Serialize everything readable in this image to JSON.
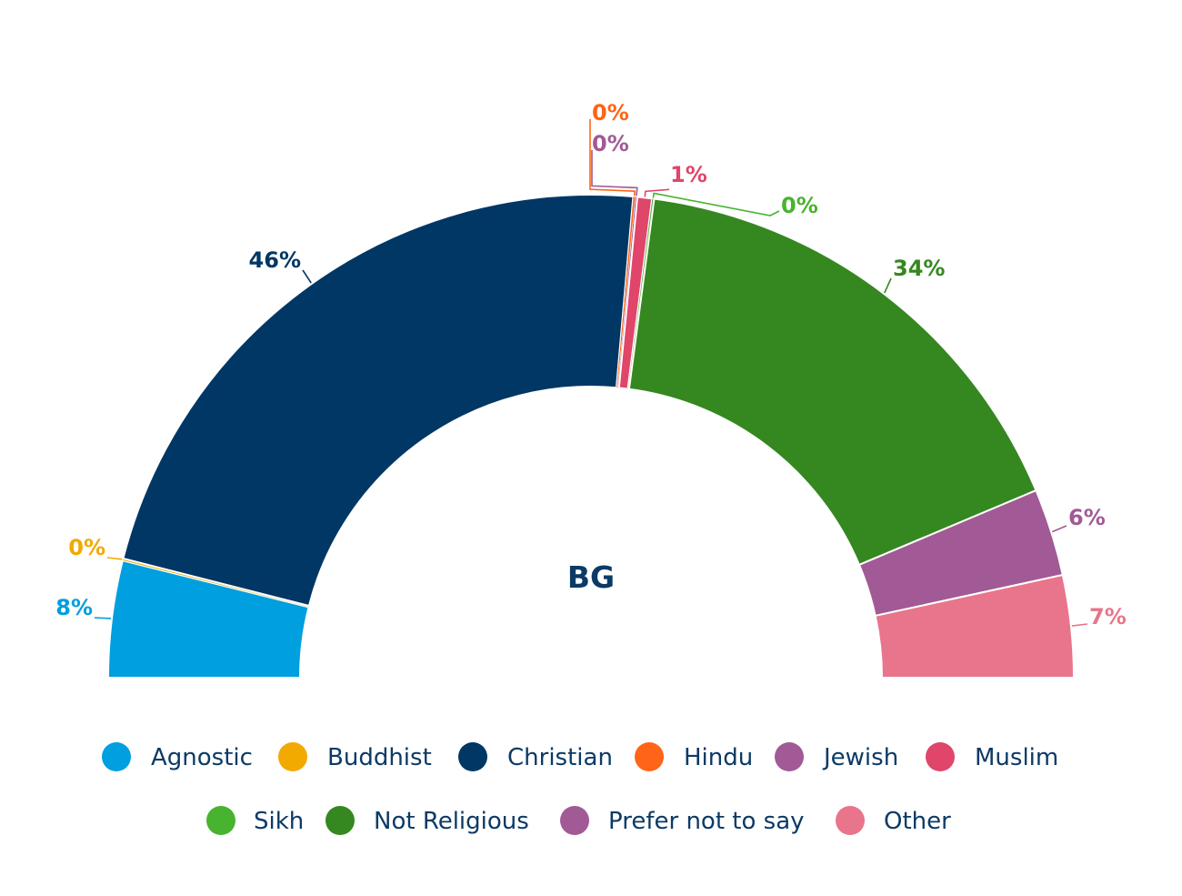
{
  "chart_data": {
    "type": "pie",
    "subtype": "semi-donut",
    "title": "BG",
    "legend_placement": "bottom",
    "slices": [
      {
        "name": "Agnostic",
        "value": 8,
        "label": "8%",
        "color": "#009fdf"
      },
      {
        "name": "Buddhist",
        "value": 0,
        "label": "0%",
        "color": "#f2a900"
      },
      {
        "name": "Christian",
        "value": 46,
        "label": "46%",
        "color": "#003764"
      },
      {
        "name": "Hindu",
        "value": 0,
        "label": "0%",
        "color": "#ff6418"
      },
      {
        "name": "Jewish",
        "value": 0,
        "label": "0%",
        "color": "#a15a95"
      },
      {
        "name": "Muslim",
        "value": 1,
        "label": "1%",
        "color": "#e0456a"
      },
      {
        "name": "Sikh",
        "value": 0,
        "label": "0%",
        "color": "#48b32e"
      },
      {
        "name": "Not Religious",
        "value": 34,
        "label": "34%",
        "color": "#358720"
      },
      {
        "name": "Prefer not to say",
        "value": 6,
        "label": "6%",
        "color": "#a15a95"
      },
      {
        "name": "Other",
        "value": 7,
        "label": "7%",
        "color": "#e8758b"
      }
    ]
  }
}
